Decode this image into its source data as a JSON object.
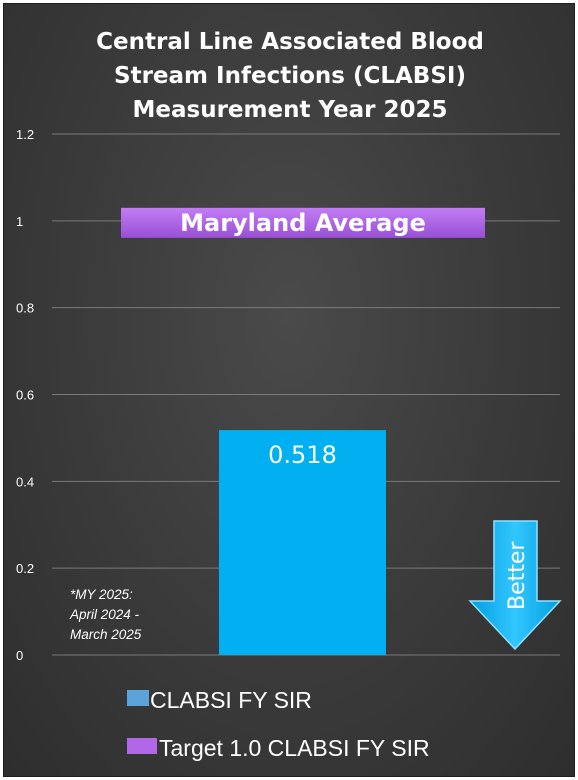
{
  "chart_data": {
    "type": "bar",
    "title_lines": [
      "Central Line Associated Blood",
      "Stream Infections (CLABSI)",
      "Measurement Year 2025"
    ],
    "ylim": [
      0,
      1.2
    ],
    "y_ticks": [
      "0",
      "0.2",
      "0.4",
      "0.6",
      "0.8",
      "1",
      "1.2"
    ],
    "series": [
      {
        "name": "CLABSI FY SIR",
        "values": [
          0.518
        ],
        "color": "#00b0f0",
        "data_label": "0.518"
      }
    ],
    "target": {
      "name": "Target 1.0 CLABSI FY SIR",
      "value": 1.0,
      "label": "Maryland Average",
      "color": "#b168e8"
    },
    "note_lines": [
      "*MY 2025:",
      "April 2024 -",
      "March 2025"
    ],
    "arrow_label": "Better",
    "arrow_color": "#00b0f0",
    "grid": true,
    "legend_position": "bottom-left"
  }
}
